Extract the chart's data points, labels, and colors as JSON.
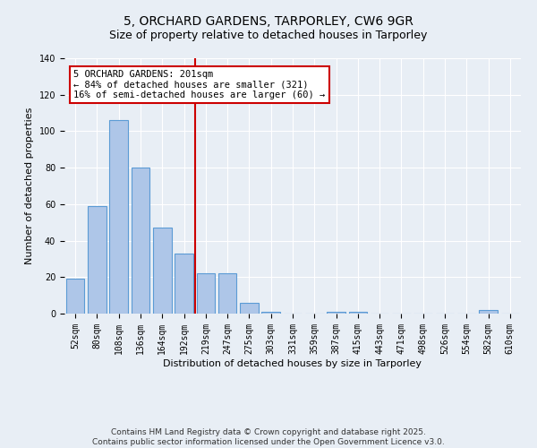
{
  "title": "5, ORCHARD GARDENS, TARPORLEY, CW6 9GR",
  "subtitle": "Size of property relative to detached houses in Tarporley",
  "xlabel": "Distribution of detached houses by size in Tarporley",
  "ylabel": "Number of detached properties",
  "footer_line1": "Contains HM Land Registry data © Crown copyright and database right 2025.",
  "footer_line2": "Contains public sector information licensed under the Open Government Licence v3.0.",
  "categories": [
    "52sqm",
    "80sqm",
    "108sqm",
    "136sqm",
    "164sqm",
    "192sqm",
    "219sqm",
    "247sqm",
    "275sqm",
    "303sqm",
    "331sqm",
    "359sqm",
    "387sqm",
    "415sqm",
    "443sqm",
    "471sqm",
    "498sqm",
    "526sqm",
    "554sqm",
    "582sqm",
    "610sqm"
  ],
  "values": [
    19,
    59,
    106,
    80,
    47,
    33,
    22,
    22,
    6,
    1,
    0,
    0,
    1,
    1,
    0,
    0,
    0,
    0,
    0,
    2,
    0
  ],
  "bar_color": "#aec6e8",
  "bar_edge_color": "#5b9bd5",
  "vline_color": "#cc0000",
  "annotation_text": "5 ORCHARD GARDENS: 201sqm\n← 84% of detached houses are smaller (321)\n16% of semi-detached houses are larger (60) →",
  "annotation_box_color": "#ffffff",
  "annotation_box_edge": "#cc0000",
  "ylim": [
    0,
    140
  ],
  "yticks": [
    0,
    20,
    40,
    60,
    80,
    100,
    120,
    140
  ],
  "bg_color": "#e8eef5",
  "plot_bg_color": "#e8eef5",
  "grid_color": "#ffffff",
  "title_fontsize": 10,
  "subtitle_fontsize": 9,
  "axis_label_fontsize": 8,
  "tick_fontsize": 7,
  "footer_fontsize": 6.5,
  "annotation_fontsize": 7.5
}
